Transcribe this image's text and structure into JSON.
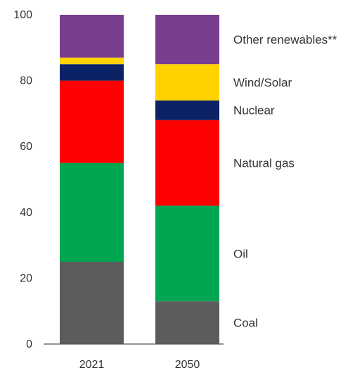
{
  "chart_data": {
    "type": "bar",
    "stacked": true,
    "categories": [
      "2021",
      "2050"
    ],
    "series": [
      {
        "name": "Coal",
        "values": [
          25,
          13
        ],
        "color": "#5c5c5c"
      },
      {
        "name": "Oil",
        "values": [
          30,
          29
        ],
        "color": "#00a651"
      },
      {
        "name": "Natural gas",
        "values": [
          25,
          26
        ],
        "color": "#ff0000"
      },
      {
        "name": "Nuclear",
        "values": [
          5,
          6
        ],
        "color": "#0b2266"
      },
      {
        "name": "Wind/Solar",
        "values": [
          2,
          11
        ],
        "color": "#ffd200"
      },
      {
        "name": "Other renewables**",
        "values": [
          13,
          15
        ],
        "color": "#7a3e8e"
      }
    ],
    "ylim": [
      0,
      100
    ],
    "yticks": [
      "0",
      "20",
      "40",
      "60",
      "80",
      "100"
    ],
    "ytick_values": [
      0,
      20,
      40,
      60,
      80,
      100
    ],
    "xlabel": "",
    "ylabel": "",
    "title": "",
    "grid": false,
    "legend_placement": "right, labels aligned to 2050 segments"
  }
}
